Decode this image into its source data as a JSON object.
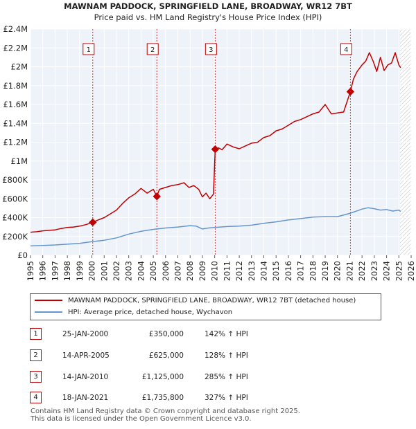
{
  "chart_data": {
    "type": "line",
    "title": "MAWNAM PADDOCK, SPRINGFIELD LANE, BROADWAY, WR12 7BT",
    "subtitle": "Price paid vs. HM Land Registry's House Price Index (HPI)",
    "xlim": [
      1995,
      2026
    ],
    "ylim": [
      0,
      2400000
    ],
    "x_ticks": [
      1995,
      1996,
      1997,
      1998,
      1999,
      2000,
      2001,
      2002,
      2003,
      2004,
      2005,
      2006,
      2007,
      2008,
      2009,
      2010,
      2011,
      2012,
      2013,
      2014,
      2015,
      2016,
      2017,
      2018,
      2019,
      2020,
      2021,
      2022,
      2023,
      2024,
      2025,
      2026
    ],
    "y_ticks": [
      {
        "value": 0,
        "label": "£0"
      },
      {
        "value": 200000,
        "label": "£200K"
      },
      {
        "value": 400000,
        "label": "£400K"
      },
      {
        "value": 600000,
        "label": "£600K"
      },
      {
        "value": 800000,
        "label": "£800K"
      },
      {
        "value": 1000000,
        "label": "£1M"
      },
      {
        "value": 1200000,
        "label": "£1.2M"
      },
      {
        "value": 1400000,
        "label": "£1.4M"
      },
      {
        "value": 1600000,
        "label": "£1.6M"
      },
      {
        "value": 1800000,
        "label": "£1.8M"
      },
      {
        "value": 2000000,
        "label": "£2M"
      },
      {
        "value": 2200000,
        "label": "£2.2M"
      },
      {
        "value": 2400000,
        "label": "£2.4M"
      }
    ],
    "series": [
      {
        "name": "MAWNAM PADDOCK, SPRINGFIELD LANE, BROADWAY, WR12 7BT (detached house)",
        "color": "#c00000",
        "x": [
          1995.0,
          1995.5,
          1996.0,
          1996.5,
          1997.0,
          1997.5,
          1998.0,
          1998.5,
          1999.0,
          1999.5,
          2000.07,
          2000.5,
          2001.0,
          2001.5,
          2002.0,
          2002.5,
          2003.0,
          2003.5,
          2004.0,
          2004.5,
          2005.0,
          2005.29,
          2005.5,
          2006.0,
          2006.5,
          2007.0,
          2007.5,
          2007.9,
          2008.3,
          2008.7,
          2009.0,
          2009.3,
          2009.6,
          2009.9,
          2010.04,
          2010.3,
          2010.6,
          2011.0,
          2011.5,
          2012.0,
          2012.5,
          2013.0,
          2013.5,
          2014.0,
          2014.5,
          2015.0,
          2015.5,
          2016.0,
          2016.5,
          2017.0,
          2017.5,
          2018.0,
          2018.5,
          2019.0,
          2019.5,
          2020.0,
          2020.5,
          2021.05,
          2021.3,
          2021.6,
          2022.0,
          2022.3,
          2022.6,
          2022.9,
          2023.2,
          2023.5,
          2023.8,
          2024.1,
          2024.4,
          2024.7,
          2025.0,
          2025.15
        ],
        "y": [
          245000,
          250000,
          260000,
          265000,
          270000,
          285000,
          295000,
          300000,
          310000,
          325000,
          350000,
          375000,
          400000,
          440000,
          480000,
          550000,
          610000,
          650000,
          710000,
          660000,
          700000,
          625000,
          700000,
          720000,
          740000,
          750000,
          770000,
          720000,
          740000,
          700000,
          620000,
          660000,
          600000,
          650000,
          1125000,
          1140000,
          1120000,
          1180000,
          1150000,
          1130000,
          1160000,
          1190000,
          1200000,
          1250000,
          1270000,
          1320000,
          1340000,
          1380000,
          1420000,
          1440000,
          1470000,
          1500000,
          1520000,
          1600000,
          1500000,
          1510000,
          1520000,
          1735800,
          1870000,
          1950000,
          2020000,
          2060000,
          2150000,
          2060000,
          1950000,
          2100000,
          1960000,
          2020000,
          2040000,
          2150000,
          2020000,
          1990000
        ]
      },
      {
        "name": "HPI: Average price, detached house, Wychavon",
        "color": "#6495cd",
        "x": [
          1995,
          1996,
          1997,
          1998,
          1999,
          2000,
          2001,
          2002,
          2003,
          2004,
          2005,
          2006,
          2007,
          2008,
          2008.5,
          2009,
          2009.5,
          2010,
          2011,
          2012,
          2013,
          2014,
          2015,
          2016,
          2017,
          2018,
          2019,
          2020,
          2021,
          2022,
          2022.5,
          2023,
          2023.5,
          2024,
          2024.5,
          2025,
          2025.15
        ],
        "y": [
          100000,
          105000,
          110000,
          118000,
          127000,
          145000,
          160000,
          185000,
          225000,
          255000,
          275000,
          290000,
          300000,
          315000,
          310000,
          280000,
          290000,
          295000,
          305000,
          310000,
          320000,
          340000,
          355000,
          375000,
          390000,
          405000,
          410000,
          410000,
          445000,
          490000,
          505000,
          495000,
          480000,
          485000,
          470000,
          480000,
          465000
        ]
      }
    ],
    "sales": [
      {
        "num": "1",
        "year": 2000.07,
        "price": 350000
      },
      {
        "num": "2",
        "year": 2005.29,
        "price": 625000
      },
      {
        "num": "3",
        "year": 2010.04,
        "price": 1125000
      },
      {
        "num": "4",
        "year": 2021.05,
        "price": 1735800
      }
    ]
  },
  "legend": {
    "property": "MAWNAM PADDOCK, SPRINGFIELD LANE, BROADWAY, WR12 7BT (detached house)",
    "hpi": "HPI: Average price, detached house, Wychavon"
  },
  "table": [
    {
      "num": "1",
      "date": "25-JAN-2000",
      "price": "£350,000",
      "hpi": "142% ↑ HPI"
    },
    {
      "num": "2",
      "date": "14-APR-2005",
      "price": "£625,000",
      "hpi": "128% ↑ HPI"
    },
    {
      "num": "3",
      "date": "14-JAN-2010",
      "price": "£1,125,000",
      "hpi": "285% ↑ HPI"
    },
    {
      "num": "4",
      "date": "18-JAN-2021",
      "price": "£1,735,800",
      "hpi": "327% ↑ HPI"
    }
  ],
  "footer": {
    "line1": "Contains HM Land Registry data © Crown copyright and database right 2025.",
    "line2": "This data is licensed under the Open Government Licence v3.0."
  }
}
